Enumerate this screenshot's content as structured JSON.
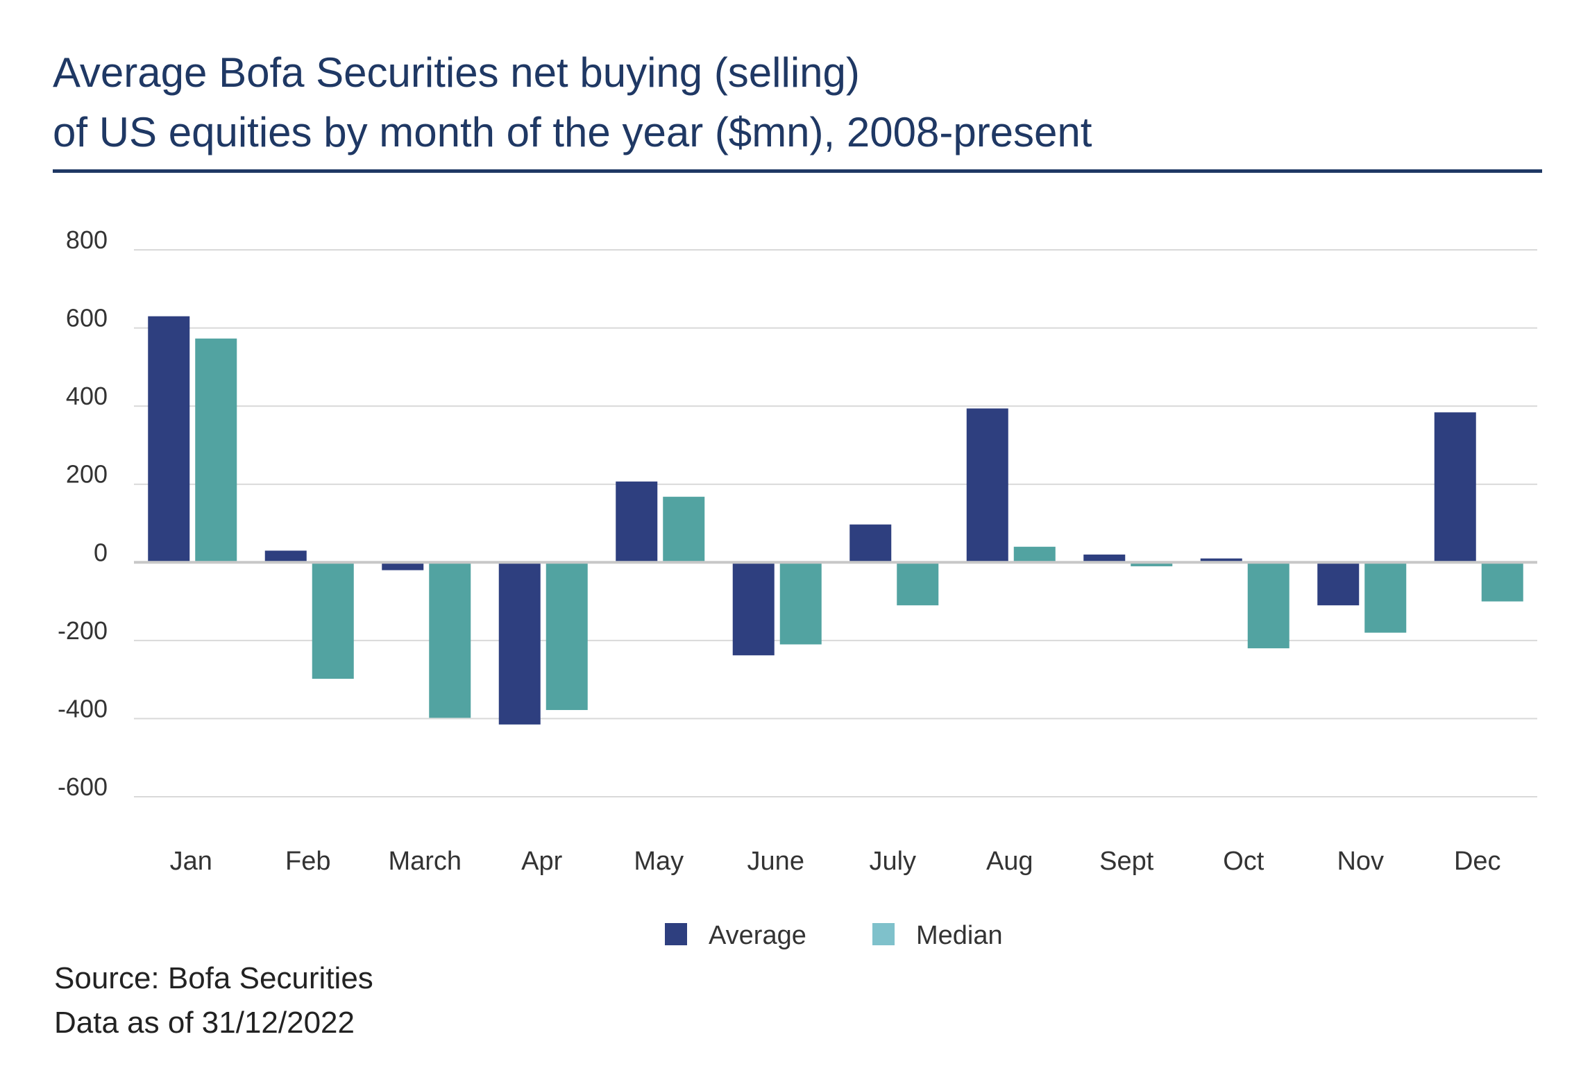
{
  "title": {
    "line1": "Average Bofa Securities net buying (selling)",
    "line2": "of US equities by month of the year ($mn), 2008-present"
  },
  "footer": {
    "source": "Source: Bofa Securities",
    "data_as_of": "Data as of 31/12/2022"
  },
  "colors": {
    "title": "#1f3864",
    "average": "#2e3f7f",
    "median": "#52a3a1",
    "median_legend": "#7fc1cb",
    "grid": "#d9d9d9",
    "zero_line": "#c8c8c8",
    "axis_text": "#333333"
  },
  "chart_data": {
    "type": "bar",
    "categories": [
      "Jan",
      "Feb",
      "March",
      "Apr",
      "May",
      "June",
      "July",
      "Aug",
      "Sept",
      "Oct",
      "Nov",
      "Dec"
    ],
    "series": [
      {
        "name": "Average",
        "values": [
          630,
          30,
          -20,
          -415,
          207,
          -238,
          97,
          394,
          20,
          10,
          -110,
          384
        ]
      },
      {
        "name": "Median",
        "values": [
          573,
          -298,
          -398,
          -378,
          168,
          -210,
          -110,
          40,
          -10,
          -220,
          -180,
          -100
        ]
      }
    ],
    "yticks": [
      800,
      600,
      400,
      200,
      0,
      -200,
      -400,
      -600
    ],
    "ylim": [
      -600,
      800
    ],
    "grid": true,
    "legend": "bottom-center"
  }
}
